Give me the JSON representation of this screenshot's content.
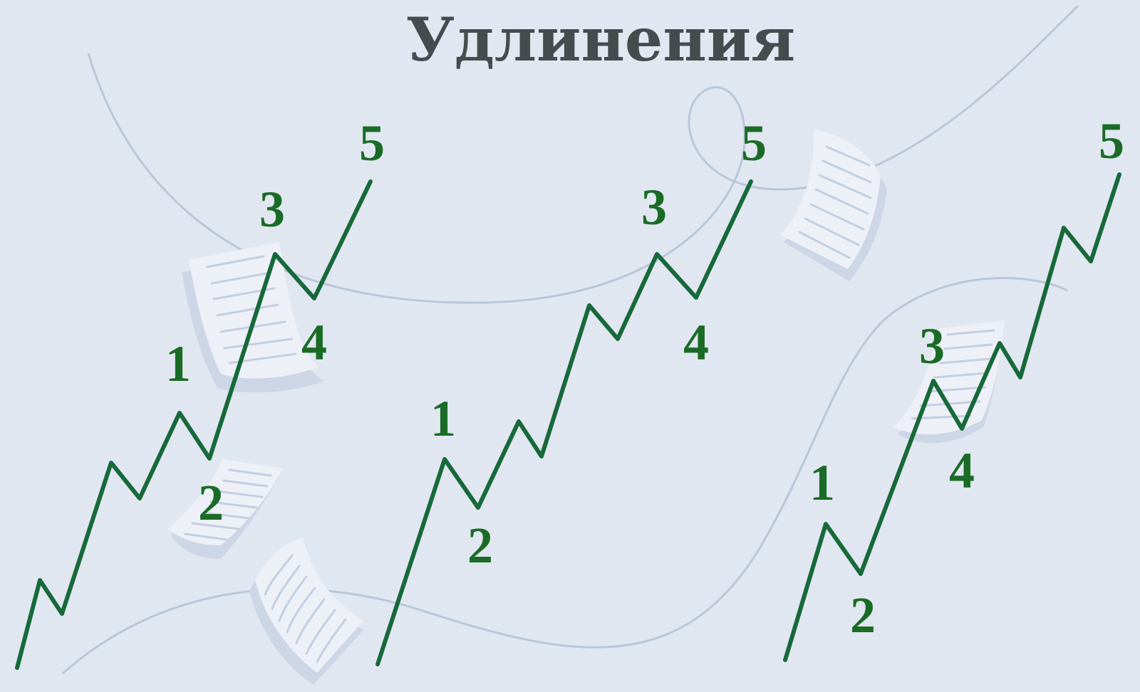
{
  "title": "Удлинения",
  "colors": {
    "background": "#e1e7f1",
    "wave": "#17693a",
    "label": "#1a6b26",
    "title": "#464b4e",
    "decor": "#b9c7d8"
  },
  "diagrams": [
    {
      "name": "extended-wave-1",
      "labels": [
        "1",
        "2",
        "3",
        "4",
        "5"
      ]
    },
    {
      "name": "extended-wave-3",
      "labels": [
        "1",
        "2",
        "3",
        "4",
        "5"
      ]
    },
    {
      "name": "extended-wave-5",
      "labels": [
        "1",
        "2",
        "3",
        "4",
        "5"
      ]
    }
  ]
}
